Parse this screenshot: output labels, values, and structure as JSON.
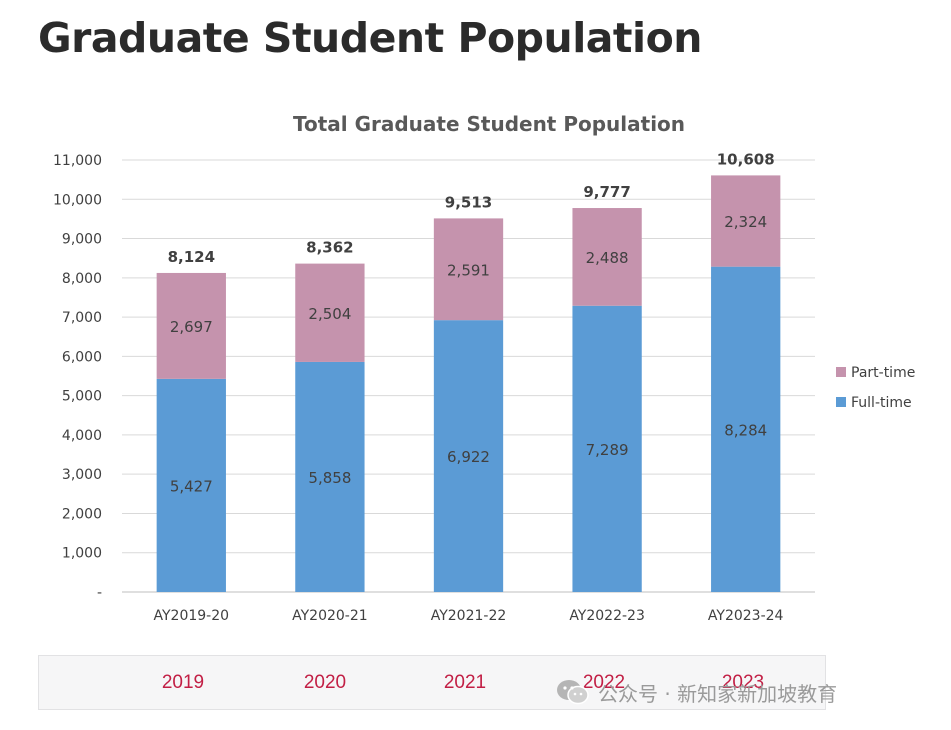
{
  "page": {
    "title": "Graduate Student Population"
  },
  "chart_data": {
    "type": "bar",
    "stacked": true,
    "title": "Total Graduate Student Population",
    "categories": [
      "AY2019-20",
      "AY2020-21",
      "AY2021-22",
      "AY2022-23",
      "AY2023-24"
    ],
    "series": [
      {
        "name": "Full-time",
        "color": "#5b9bd5",
        "values": [
          5427,
          5858,
          6922,
          7289,
          8284
        ]
      },
      {
        "name": "Part-time",
        "color": "#c593ad",
        "values": [
          2697,
          2504,
          2591,
          2488,
          2324
        ]
      }
    ],
    "totals": [
      8124,
      8362,
      9513,
      9777,
      10608
    ],
    "ylim": [
      0,
      11000
    ],
    "yticks": [
      0,
      1000,
      2000,
      3000,
      4000,
      5000,
      6000,
      7000,
      8000,
      9000,
      10000,
      11000
    ],
    "ytick_labels": [
      "-",
      "1,000",
      "2,000",
      "3,000",
      "4,000",
      "5,000",
      "6,000",
      "7,000",
      "8,000",
      "9,000",
      "10,000",
      "11,000"
    ],
    "xlabel": "",
    "ylabel": "",
    "grid": true,
    "legend": "right",
    "legend_order": [
      "Part-time",
      "Full-time"
    ]
  },
  "year_strip": {
    "years": [
      "2019",
      "2020",
      "2021",
      "2022",
      "2023"
    ]
  },
  "watermark": {
    "text": "公众号 · 新知家新加坡教育"
  }
}
